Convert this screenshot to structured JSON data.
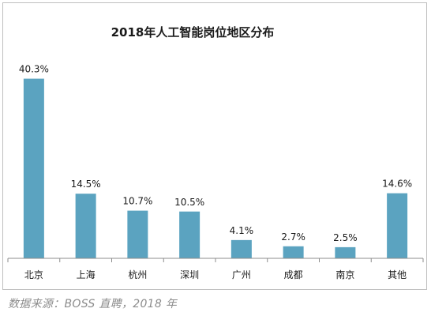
{
  "chart_data": {
    "type": "bar",
    "title": "2018年人工智能岗位地区分布",
    "categories": [
      "北京",
      "上海",
      "杭州",
      "深圳",
      "广州",
      "成都",
      "南京",
      "其他"
    ],
    "values": [
      40.3,
      14.5,
      10.7,
      10.5,
      4.1,
      2.7,
      2.5,
      14.6
    ],
    "value_labels": [
      "40.3%",
      "14.5%",
      "10.7%",
      "10.5%",
      "4.1%",
      "2.7%",
      "2.5%",
      "14.6%"
    ],
    "unit": "%",
    "ylim": [
      0,
      42
    ],
    "grid": false,
    "legend": "none",
    "bar_color": "#5ba3c0"
  },
  "source_note": "数据来源：BOSS 直聘，2018 年"
}
